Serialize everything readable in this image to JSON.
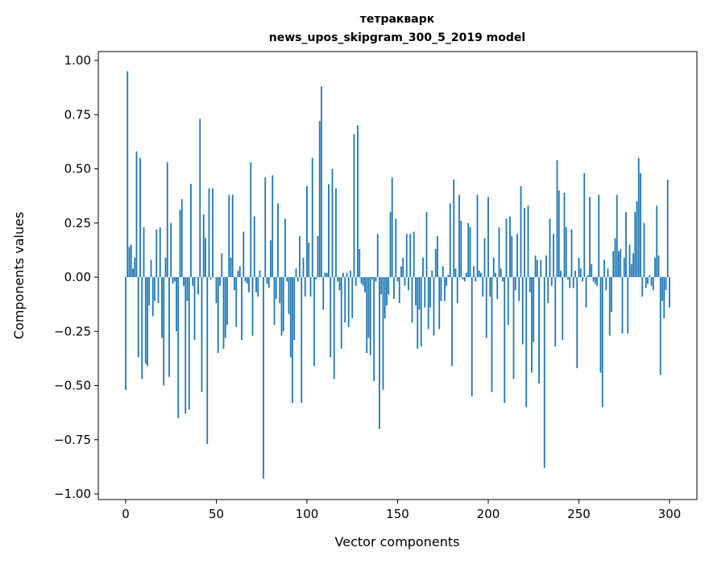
{
  "chart_data": {
    "type": "bar",
    "title": "тетракварк",
    "subtitle": "news_upos_skipgram_300_5_2019 model",
    "xlabel": "Vector components",
    "ylabel": "Components values",
    "xlim": [
      -15,
      313
    ],
    "ylim": [
      -1.02,
      1.04
    ],
    "xticks": [
      0,
      50,
      100,
      150,
      200,
      250,
      300
    ],
    "xtick_labels": [
      "0",
      "50",
      "100",
      "150",
      "200",
      "250",
      "300"
    ],
    "yticks": [
      1.0,
      0.75,
      0.5,
      0.25,
      0.0,
      -0.25,
      -0.5,
      -0.75,
      -1.0
    ],
    "ytick_labels": [
      "1.00",
      "0.75",
      "0.50",
      "0.25",
      "0.00",
      "−0.25",
      "−0.50",
      "−0.75",
      "−1.00"
    ],
    "color": "#1f77b4",
    "grid": false,
    "values": [
      -0.52,
      0.95,
      0.14,
      0.15,
      0.04,
      0.09,
      0.58,
      -0.37,
      0.55,
      -0.47,
      0.23,
      -0.4,
      -0.41,
      -0.13,
      0.08,
      -0.18,
      -0.11,
      0.22,
      -0.12,
      0.23,
      -0.28,
      -0.5,
      0.09,
      0.53,
      -0.46,
      0.25,
      -0.03,
      -0.02,
      -0.25,
      -0.65,
      0.31,
      0.36,
      -0.04,
      -0.63,
      -0.11,
      -0.61,
      0.43,
      -0.04,
      -0.29,
      0.0,
      -0.08,
      0.73,
      -0.53,
      0.29,
      0.18,
      -0.77,
      0.41,
      -0.01,
      0.41,
      0.0,
      -0.12,
      -0.35,
      -0.04,
      0.11,
      -0.33,
      -0.28,
      -0.22,
      0.38,
      0.09,
      0.38,
      -0.06,
      -0.23,
      0.03,
      0.05,
      -0.29,
      0.21,
      -0.02,
      -0.03,
      -0.07,
      0.53,
      -0.27,
      0.28,
      -0.07,
      -0.09,
      0.03,
      0.0,
      -0.93,
      0.46,
      -0.03,
      -0.05,
      0.17,
      0.47,
      -0.22,
      -0.1,
      0.34,
      -0.12,
      -0.27,
      -0.25,
      0.27,
      -0.02,
      -0.17,
      -0.37,
      -0.58,
      -0.29,
      0.04,
      -0.02,
      0.19,
      -0.58,
      0.09,
      -0.09,
      0.42,
      0.16,
      -0.09,
      0.55,
      -0.41,
      -0.01,
      0.19,
      0.72,
      0.88,
      -0.15,
      0.02,
      0.02,
      0.43,
      -0.37,
      0.5,
      -0.47,
      0.41,
      -0.02,
      -0.06,
      -0.33,
      0.02,
      -0.21,
      0.02,
      -0.23,
      0.03,
      -0.19,
      0.66,
      -0.04,
      0.7,
      0.13,
      -0.03,
      -0.04,
      -0.07,
      -0.35,
      -0.28,
      -0.36,
      -0.01,
      -0.48,
      -0.02,
      0.2,
      -0.7,
      -0.08,
      -0.52,
      -0.19,
      -0.13,
      -0.08,
      0.3,
      0.46,
      -0.1,
      0.27,
      -0.02,
      -0.12,
      0.05,
      0.09,
      -0.04,
      0.2,
      -0.06,
      0.2,
      -0.21,
      0.21,
      -0.13,
      -0.33,
      -0.15,
      -0.32,
      0.09,
      -0.14,
      0.3,
      -0.24,
      -0.14,
      0.03,
      -0.27,
      0.13,
      0.19,
      -0.24,
      -0.11,
      0.05,
      -0.11,
      -0.04,
      0.01,
      0.34,
      -0.41,
      0.45,
      0.04,
      -0.12,
      0.38,
      0.26,
      -0.01,
      -0.02,
      0.02,
      0.25,
      0.23,
      -0.55,
      0.05,
      -0.02,
      0.38,
      0.03,
      0.02,
      -0.09,
      0.18,
      -0.28,
      0.37,
      -0.09,
      -0.53,
      0.09,
      0.02,
      -0.1,
      0.23,
      0.04,
      -0.02,
      -0.58,
      0.27,
      -0.22,
      0.28,
      0.19,
      -0.47,
      -0.06,
      0.2,
      -0.11,
      0.42,
      -0.31,
      0.32,
      -0.6,
      0.33,
      -0.07,
      -0.44,
      -0.3,
      0.1,
      0.08,
      -0.49,
      0.08,
      0.0,
      -0.88,
      0.1,
      -0.12,
      0.27,
      -0.04,
      0.2,
      -0.32,
      0.54,
      0.4,
      0.03,
      -0.29,
      0.39,
      0.23,
      -0.01,
      -0.05,
      0.22,
      -0.05,
      0.03,
      -0.42,
      0.09,
      0.04,
      -0.02,
      0.48,
      -0.14,
      0.01,
      0.37,
      0.06,
      -0.02,
      -0.03,
      -0.04,
      0.38,
      -0.44,
      -0.6,
      0.08,
      -0.06,
      0.04,
      -0.27,
      -0.16,
      0.12,
      0.18,
      0.38,
      0.12,
      0.13,
      -0.26,
      0.09,
      0.3,
      -0.26,
      0.15,
      0.06,
      0.11,
      0.3,
      0.35,
      0.55,
      0.48,
      -0.09,
      0.25,
      -0.05,
      -0.03,
      0.01,
      -0.04,
      -0.06,
      0.09,
      0.33,
      0.1,
      -0.45,
      -0.11,
      -0.19,
      -0.06,
      0.45,
      -0.14
    ]
  }
}
